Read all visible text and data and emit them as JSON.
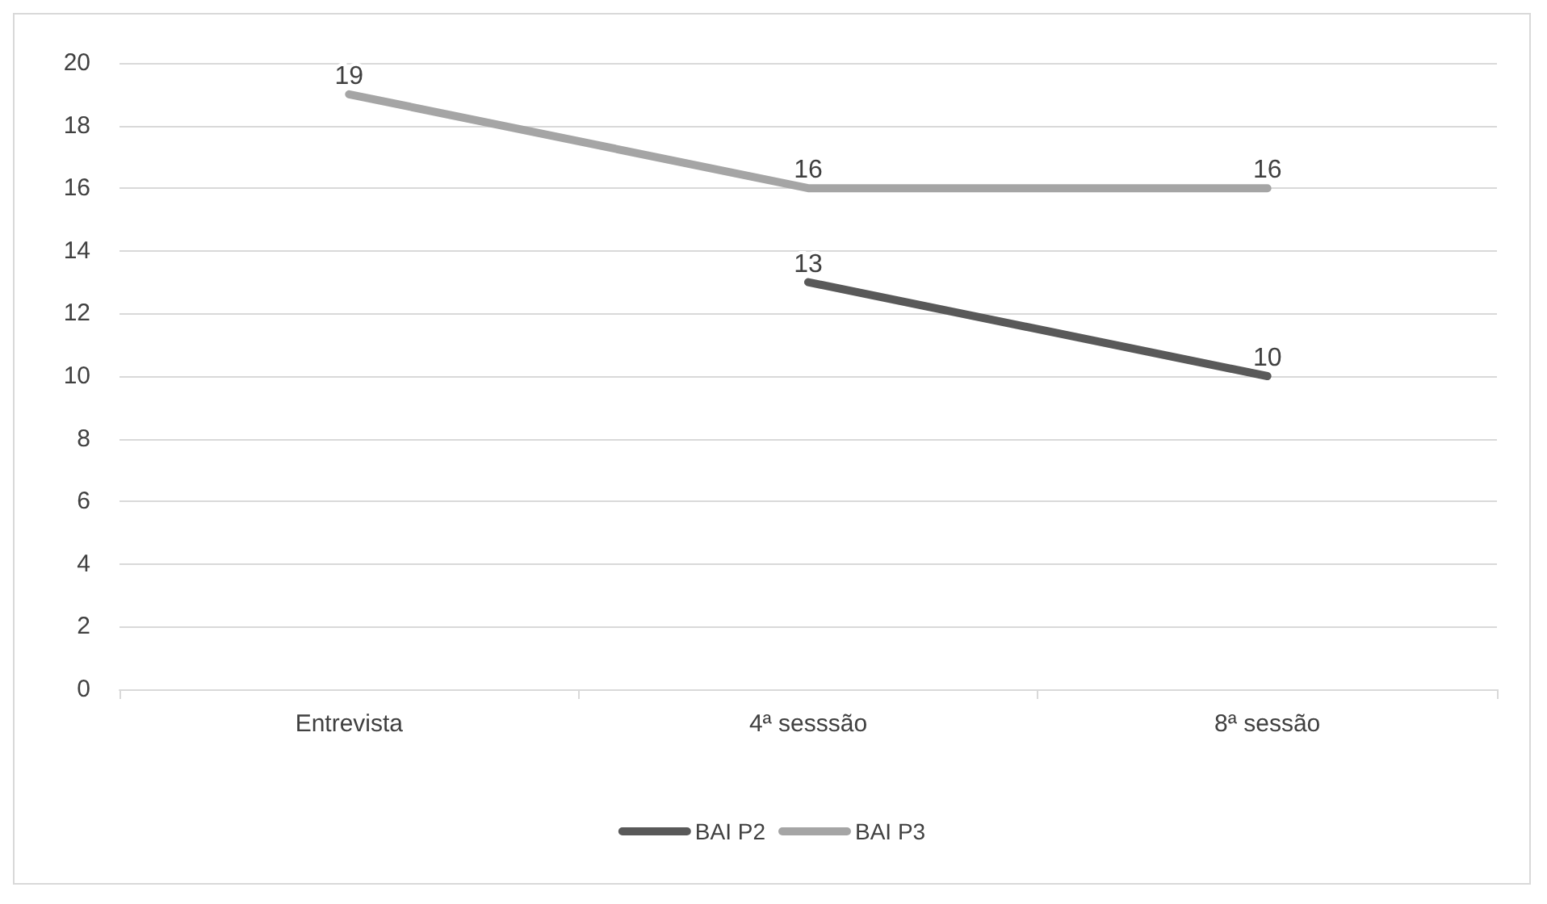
{
  "chart_data": {
    "type": "line",
    "categories": [
      "Entrevista",
      "4ª sesssão",
      "8ª sessão"
    ],
    "series": [
      {
        "name": "BAI P2",
        "color": "#595959",
        "values": [
          null,
          13,
          10
        ]
      },
      {
        "name": "BAI P3",
        "color": "#a5a5a5",
        "values": [
          19,
          16,
          16
        ]
      }
    ],
    "ylim": [
      0,
      20
    ],
    "yticks": [
      0,
      2,
      4,
      6,
      8,
      10,
      12,
      14,
      16,
      18,
      20
    ],
    "grid": "y",
    "legend": "bottom",
    "data_labels": true,
    "marker": "none",
    "line_style": "solid"
  }
}
